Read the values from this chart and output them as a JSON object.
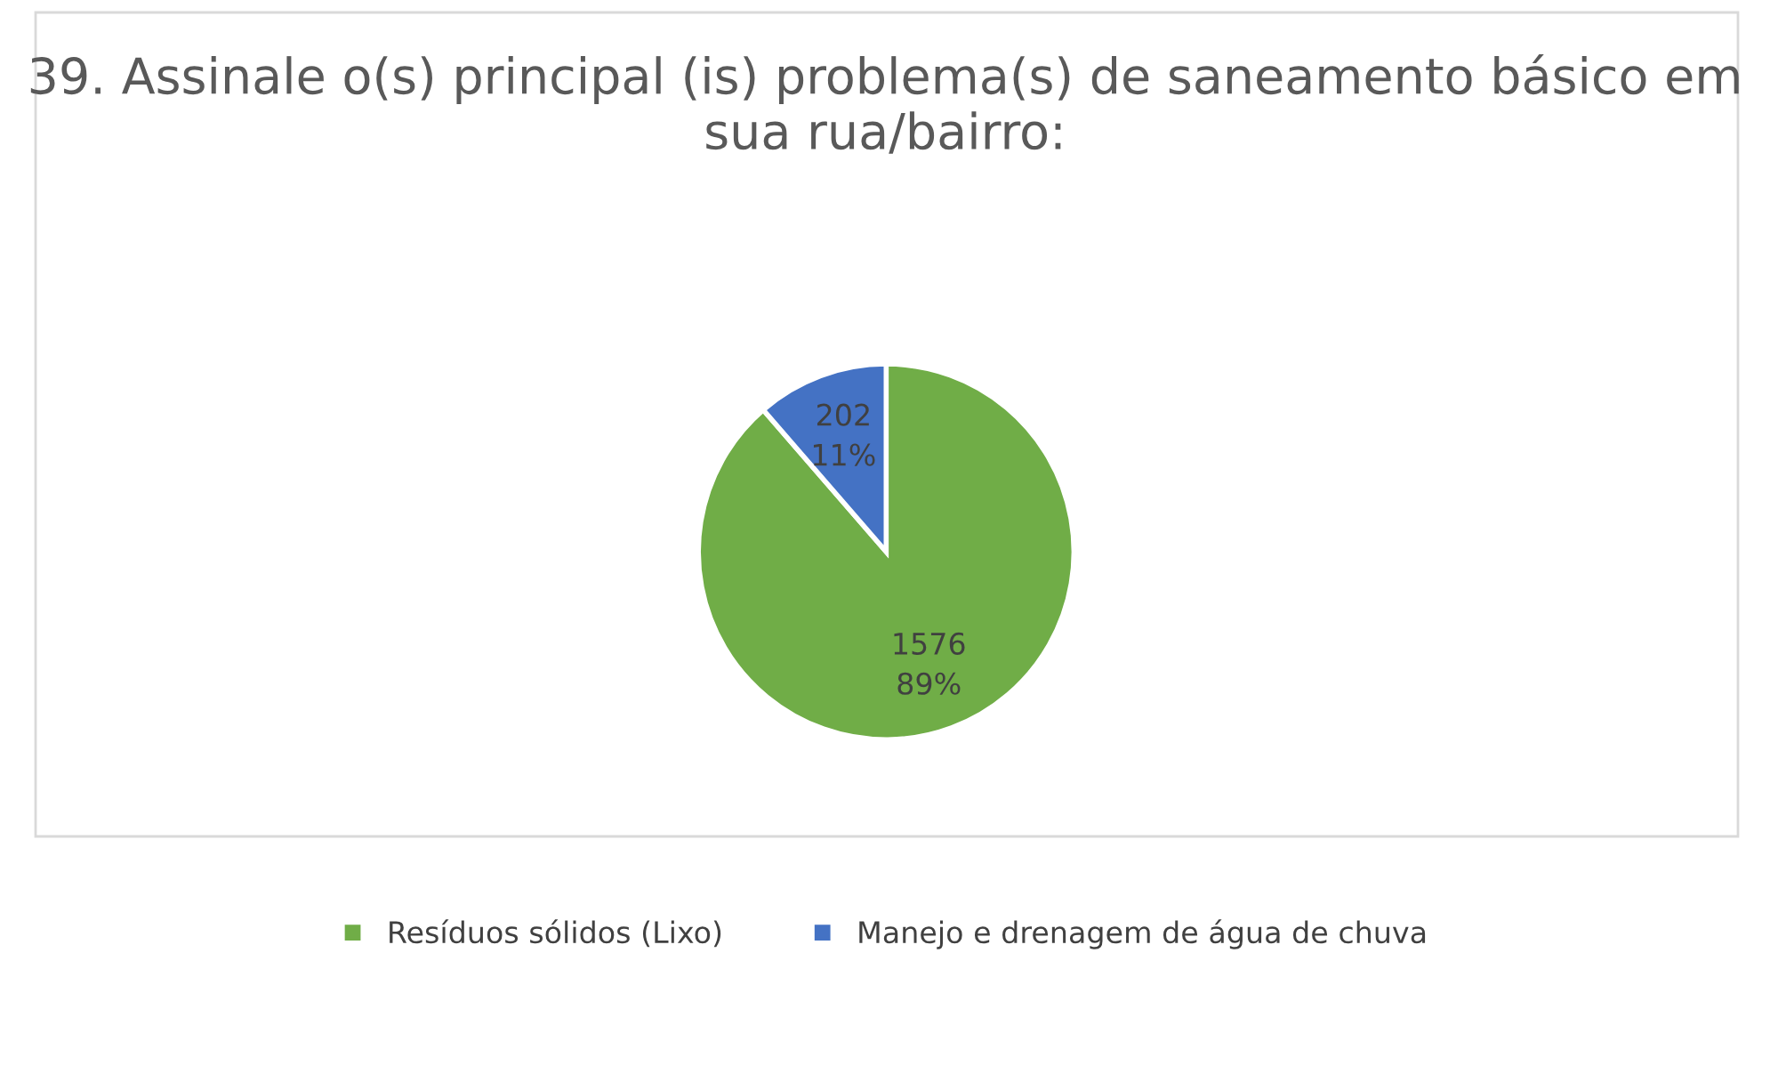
{
  "chart_data": {
    "type": "pie",
    "title": "39. Assinale o(s) principal (is) problema(s) de saneamento básico em sua rua/bairro:",
    "categories": [
      "Resíduos sólidos (Lixo)",
      "Manejo e drenagem de água de chuva"
    ],
    "values": [
      1576,
      202
    ],
    "value_labels": [
      "1576\n89%",
      "202\n11%"
    ],
    "colors": [
      "#70ad47",
      "#4472c4"
    ],
    "legend": "bottom"
  }
}
